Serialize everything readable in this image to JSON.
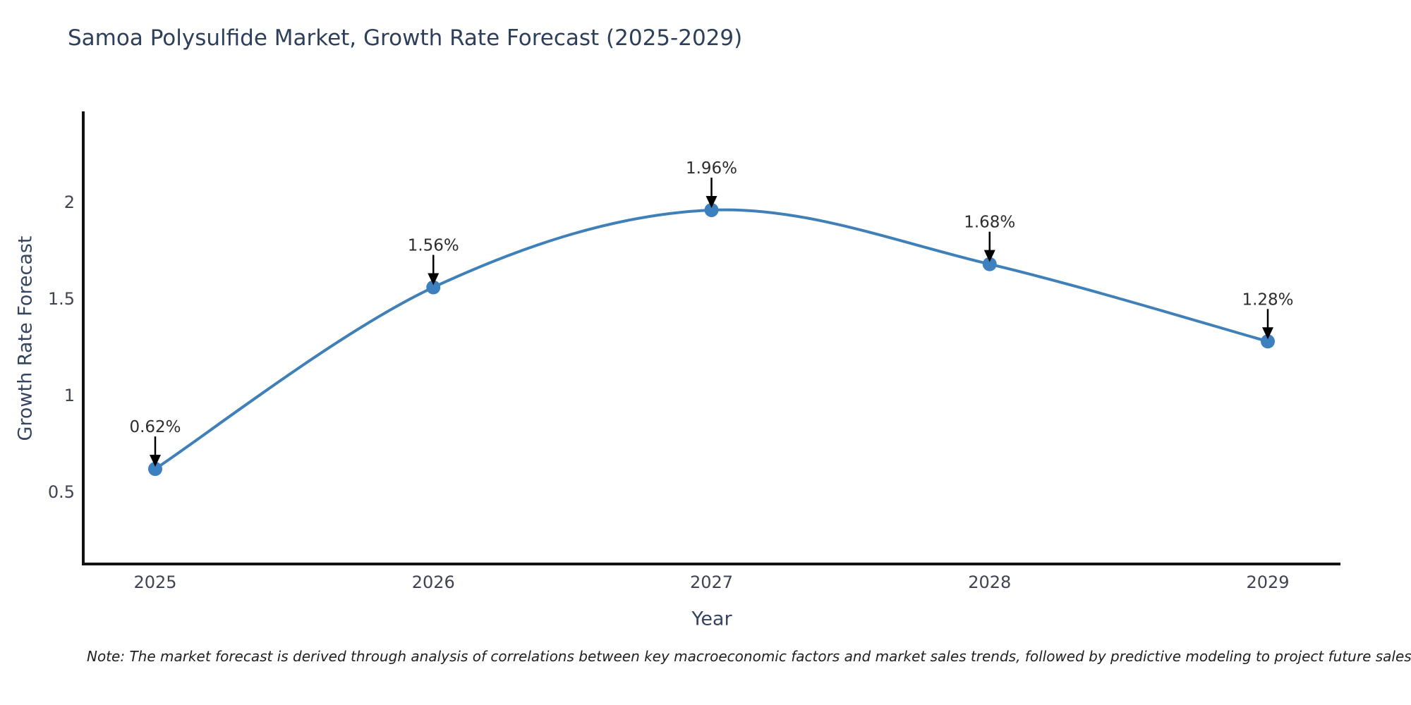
{
  "header": {
    "title": "Samoa Polysulfide Market, Growth Rate Forecast (2025-2029)"
  },
  "chart_data": {
    "type": "line",
    "title": "Samoa Polysulfide Market, Growth Rate Forecast (2025-2029)",
    "xlabel": "Year",
    "ylabel": "Growth Rate Forecast",
    "categories": [
      "2025",
      "2026",
      "2027",
      "2028",
      "2029"
    ],
    "series": [
      {
        "name": "Growth Rate Forecast",
        "values": [
          0.62,
          1.56,
          1.96,
          1.68,
          1.28
        ]
      }
    ],
    "point_labels": [
      "0.62%",
      "1.56%",
      "1.96%",
      "1.68%",
      "1.28%"
    ],
    "y_ticks": [
      {
        "value": 0.5,
        "label": "0.5"
      },
      {
        "value": 1,
        "label": "1"
      },
      {
        "value": 1.5,
        "label": "1.5"
      },
      {
        "value": 2,
        "label": "2"
      }
    ],
    "ylim": [
      0.125,
      2.46
    ],
    "grid": false,
    "legend": "none",
    "smooth": true,
    "colors": {
      "line": "#4080b8",
      "marker": "#3d80c0",
      "annotation_arrow": "#000000",
      "axis_spine": "#111111"
    }
  },
  "footer": {
    "note": "Note: The market forecast is derived through analysis of correlations between key macroeconomic factors and market sales trends, followed by predictive modeling to project future sales"
  }
}
